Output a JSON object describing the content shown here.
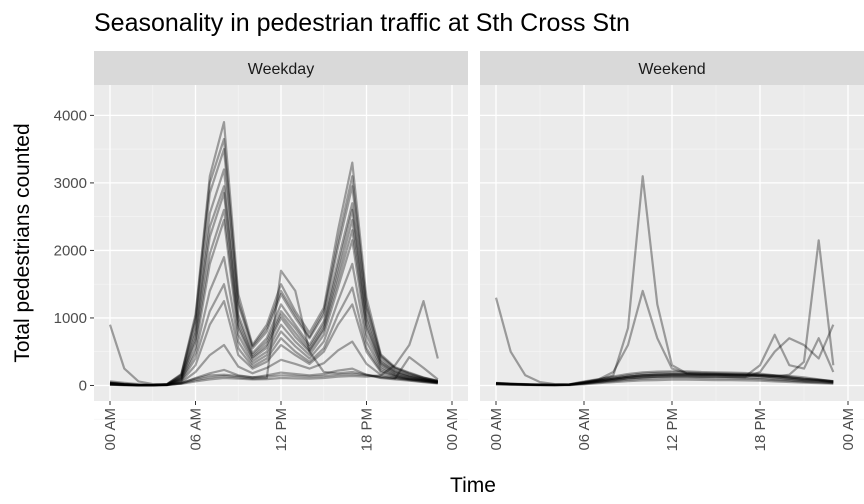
{
  "chart_data": {
    "type": "line",
    "title": "Seasonality in pedestrian traffic at Sth Cross Stn",
    "xlabel": "Time",
    "ylabel": "Total pedestrians counted",
    "x_unit": "hour of day",
    "xlim": [
      0,
      24
    ],
    "ylim": [
      -230,
      4450
    ],
    "y_ticks": [
      0,
      1000,
      2000,
      3000,
      4000
    ],
    "x_ticks": [
      0,
      6,
      12,
      18,
      24
    ],
    "x_tick_labels": [
      "00 AM",
      "06 AM",
      "12 PM",
      "18 PM",
      "00 AM"
    ],
    "grid": true,
    "panels": [
      {
        "name": "Weekday",
        "x": [
          0,
          1,
          2,
          3,
          4,
          5,
          6,
          7,
          8,
          9,
          10,
          11,
          12,
          13,
          14,
          15,
          16,
          17,
          18,
          19,
          20,
          21,
          22,
          23
        ],
        "series": [
          {
            "values": [
              30,
              15,
              5,
              5,
              15,
              130,
              850,
              2550,
              3200,
              1050,
              480,
              700,
              1200,
              900,
              600,
              950,
              1850,
              2700,
              1050,
              380,
              220,
              150,
              100,
              60
            ]
          },
          {
            "values": [
              25,
              12,
              5,
              5,
              12,
              110,
              700,
              2200,
              2850,
              900,
              420,
              600,
              1050,
              780,
              520,
              850,
              1650,
              2450,
              900,
              330,
              190,
              130,
              90,
              55
            ]
          },
          {
            "values": [
              35,
              18,
              6,
              6,
              18,
              150,
              950,
              2850,
              3500,
              1200,
              550,
              800,
              1350,
              1000,
              700,
              1050,
              2050,
              2950,
              1150,
              420,
              250,
              170,
              110,
              65
            ]
          },
          {
            "values": [
              22,
              10,
              4,
              4,
              10,
              90,
              550,
              1800,
              2450,
              750,
              360,
              500,
              900,
              650,
              450,
              750,
              1450,
              2150,
              750,
              280,
              160,
              110,
              80,
              50
            ]
          },
          {
            "values": [
              40,
              20,
              7,
              7,
              20,
              170,
              1050,
              3100,
              3900,
              1350,
              600,
              900,
              1500,
              1100,
              780,
              1150,
              2300,
              3300,
              1300,
              460,
              270,
              190,
              120,
              70
            ]
          },
          {
            "values": [
              20,
              10,
              4,
              4,
              10,
              80,
              480,
              1400,
              1900,
              650,
              320,
              450,
              800,
              580,
              400,
              650,
              1250,
              1800,
              650,
              250,
              150,
              100,
              75,
              45
            ]
          },
          {
            "values": [
              30,
              15,
              5,
              5,
              15,
              120,
              780,
              2350,
              2950,
              980,
              450,
              650,
              1100,
              850,
              560,
              900,
              1750,
              2600,
              980,
              350,
              210,
              140,
              95,
              58
            ]
          },
          {
            "values": [
              28,
              14,
              5,
              5,
              14,
              100,
              650,
              1950,
              2600,
              850,
              400,
              560,
              1000,
              720,
              500,
              820,
              1550,
              2300,
              850,
              310,
              180,
              125,
              88,
              52
            ]
          },
          {
            "values": [
              38,
              19,
              6,
              6,
              19,
              160,
              1000,
              3000,
              3650,
              1250,
              580,
              850,
              1400,
              1050,
              720,
              1100,
              2150,
              3100,
              1200,
              440,
              260,
              180,
              115,
              68
            ]
          },
          {
            "values": [
              15,
              8,
              3,
              3,
              8,
              60,
              300,
              900,
              1250,
              450,
              250,
              350,
              600,
              450,
              320,
              500,
              900,
              1200,
              500,
              200,
              130,
              90,
              65,
              40
            ]
          },
          {
            "values": [
              18,
              9,
              3,
              3,
              9,
              70,
              400,
              1100,
              1500,
              550,
              280,
              400,
              700,
              500,
              350,
              550,
              1050,
              1450,
              550,
              220,
              140,
              95,
              70,
              42
            ]
          },
          {
            "values": [
              12,
              6,
              2,
              2,
              6,
              45,
              200,
              450,
              600,
              280,
              180,
              260,
              380,
              320,
              250,
              330,
              520,
              650,
              320,
              160,
              110,
              80,
              55,
              35
            ]
          },
          {
            "values": [
              10,
              5,
              2,
              2,
              5,
              30,
              110,
              180,
              230,
              150,
              120,
              150,
              190,
              170,
              150,
              170,
              220,
              250,
              160,
              110,
              90,
              70,
              50,
              30
            ]
          },
          {
            "values": [
              900,
              250,
              60,
              20,
              15,
              40,
              100,
              150,
              160,
              140,
              120,
              130,
              150,
              140,
              130,
              140,
              160,
              170,
              150,
              120,
              100,
              420,
              260,
              90
            ]
          },
          {
            "values": [
              60,
              40,
              20,
              10,
              10,
              25,
              60,
              90,
              110,
              100,
              90,
              95,
              110,
              105,
              100,
              110,
              130,
              140,
              130,
              150,
              300,
              600,
              1250,
              400
            ]
          },
          {
            "values": [
              45,
              25,
              10,
              8,
              8,
              30,
              80,
              120,
              140,
              120,
              100,
              110,
              1700,
              1400,
              500,
              200,
              180,
              200,
              160,
              130,
              110,
              90,
              70,
              50
            ]
          }
        ]
      },
      {
        "name": "Weekend",
        "x": [
          0,
          1,
          2,
          3,
          4,
          5,
          6,
          7,
          8,
          9,
          10,
          11,
          12,
          13,
          14,
          15,
          16,
          17,
          18,
          19,
          20,
          21,
          22,
          23
        ],
        "series": [
          {
            "values": [
              30,
              20,
              15,
              10,
              8,
              12,
              40,
              70,
              100,
              130,
              150,
              160,
              165,
              165,
              160,
              160,
              155,
              150,
              140,
              120,
              100,
              80,
              70,
              50
            ]
          },
          {
            "values": [
              25,
              18,
              12,
              8,
              6,
              10,
              30,
              55,
              80,
              105,
              120,
              130,
              135,
              135,
              130,
              130,
              125,
              120,
              110,
              95,
              80,
              65,
              55,
              40
            ]
          },
          {
            "values": [
              35,
              25,
              18,
              12,
              10,
              15,
              50,
              85,
              120,
              150,
              175,
              185,
              190,
              190,
              185,
              180,
              175,
              170,
              160,
              140,
              115,
              95,
              80,
              60
            ]
          },
          {
            "values": [
              20,
              15,
              10,
              6,
              5,
              8,
              25,
              45,
              65,
              85,
              100,
              110,
              115,
              115,
              110,
              108,
              105,
              100,
              95,
              80,
              70,
              55,
              45,
              35
            ]
          },
          {
            "values": [
              40,
              28,
              20,
              14,
              12,
              18,
              60,
              95,
              135,
              170,
              195,
              205,
              210,
              210,
              200,
              195,
              190,
              185,
              175,
              150,
              125,
              100,
              85,
              65
            ]
          },
          {
            "values": [
              15,
              10,
              7,
              5,
              4,
              6,
              18,
              35,
              50,
              65,
              75,
              80,
              85,
              85,
              82,
              80,
              78,
              75,
              70,
              60,
              52,
              42,
              35,
              28
            ]
          },
          {
            "values": [
              30,
              22,
              15,
              10,
              8,
              12,
              45,
              80,
              150,
              850,
              3100,
              1200,
              300,
              180,
              170,
              165,
              160,
              155,
              150,
              140,
              120,
              100,
              80,
              60
            ]
          },
          {
            "values": [
              35,
              25,
              18,
              12,
              10,
              14,
              50,
              90,
              200,
              600,
              1400,
              700,
              250,
              180,
              170,
              170,
              165,
              160,
              155,
              150,
              140,
              120,
              90,
              60
            ]
          },
          {
            "values": [
              1300,
              500,
              150,
              50,
              20,
              15,
              40,
              70,
              100,
              130,
              150,
              160,
              165,
              165,
              160,
              160,
              155,
              150,
              140,
              120,
              100,
              80,
              70,
              50
            ]
          },
          {
            "values": [
              30,
              20,
              15,
              10,
              8,
              12,
              40,
              70,
              100,
              130,
              150,
              160,
              165,
              165,
              160,
              160,
              155,
              150,
              140,
              130,
              160,
              350,
              2150,
              300
            ]
          },
          {
            "values": [
              25,
              18,
              12,
              8,
              6,
              10,
              30,
              55,
              80,
              105,
              120,
              130,
              135,
              135,
              130,
              130,
              125,
              120,
              200,
              500,
              700,
              600,
              400,
              900
            ]
          },
          {
            "values": [
              28,
              20,
              14,
              9,
              7,
              11,
              35,
              60,
              90,
              115,
              135,
              145,
              150,
              150,
              145,
              145,
              140,
              135,
              300,
              750,
              300,
              250,
              700,
              200
            ]
          }
        ]
      }
    ]
  }
}
